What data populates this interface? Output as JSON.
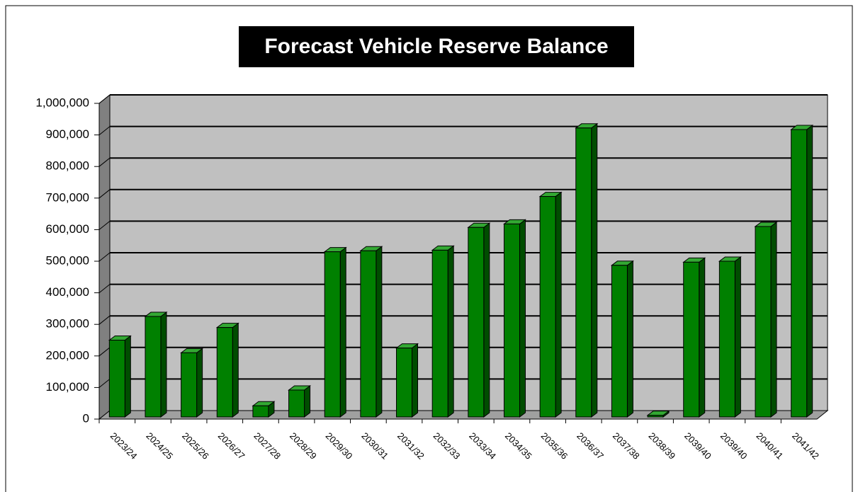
{
  "chart_data": {
    "type": "bar3d",
    "title": "Forecast Vehicle Reserve Balance",
    "categories": [
      "2023/24",
      "2024/25",
      "2025/26",
      "2026/27",
      "2027/28",
      "2028/29",
      "2029/30",
      "2030/31",
      "2031/32",
      "2032/33",
      "2033/34",
      "2034/35",
      "2035/36",
      "2036/37",
      "2037/38",
      "2038/39",
      "2039/40",
      "2039/40",
      "2040/41",
      "2041/42"
    ],
    "values": [
      250000,
      325000,
      210000,
      290000,
      42000,
      92000,
      530000,
      533000,
      225000,
      535000,
      607000,
      618000,
      705000,
      922000,
      487000,
      12000,
      497000,
      500000,
      610000,
      917000
    ],
    "color": "#008000",
    "ylim": [
      0,
      1000000
    ],
    "yticks": [
      0,
      {
        "value": 100000,
        "label": "100,000"
      },
      {
        "value": 200000,
        "label": "200,000"
      },
      {
        "value": 300000,
        "label": "300,000"
      },
      {
        "value": 400000,
        "label": "400,000"
      },
      {
        "value": 500000,
        "label": "500,000"
      },
      {
        "value": 600000,
        "label": "600,000"
      },
      {
        "value": 700000,
        "label": "700,000"
      },
      {
        "value": 800000,
        "label": "800,000"
      },
      {
        "value": 900000,
        "label": "900,000"
      },
      {
        "value": 1000000,
        "label": "1,000,000"
      }
    ],
    "grid": true
  }
}
